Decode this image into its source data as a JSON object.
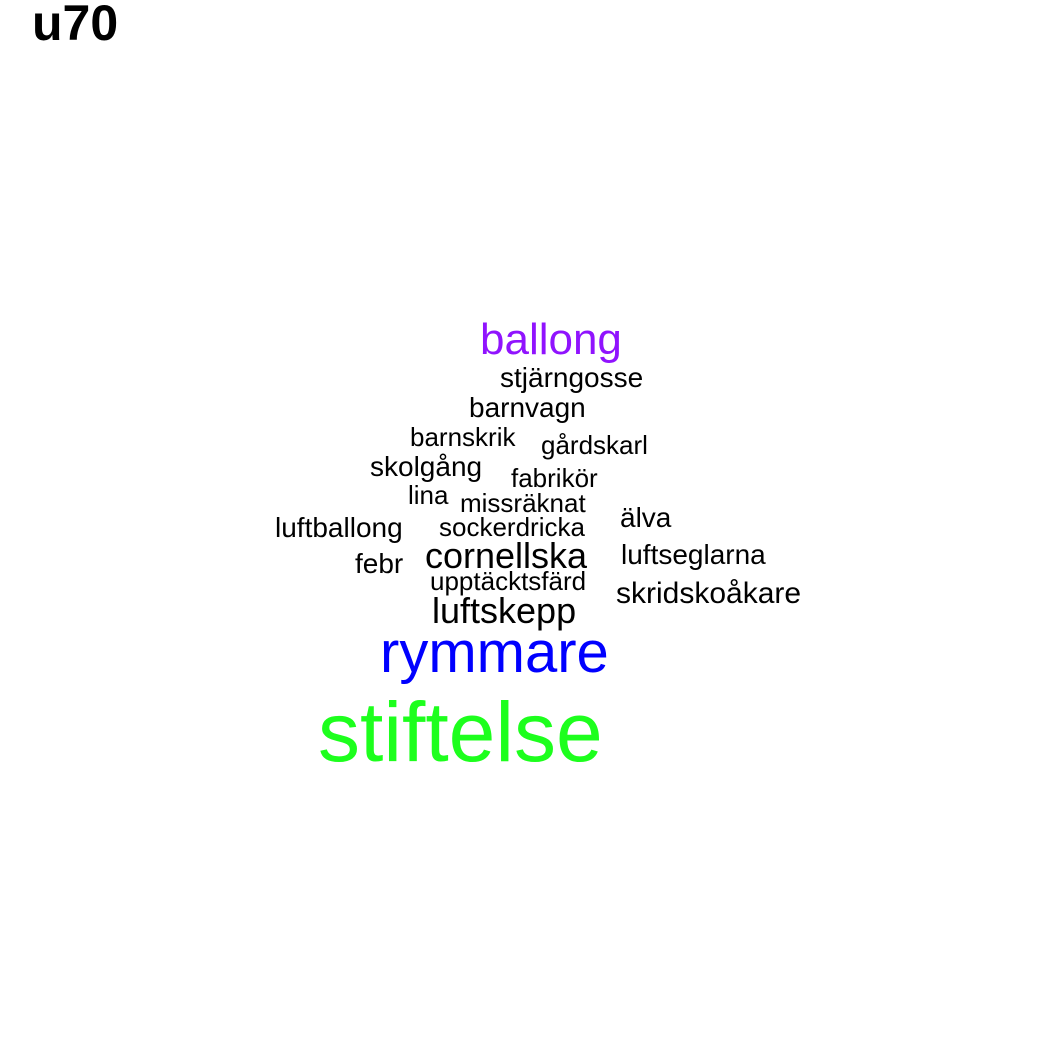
{
  "title": "u70",
  "colors": {
    "default_word": "#000000",
    "ballong": "#9013FE",
    "rymmare": "#0000FF",
    "stiftelse": "#1DFF1D",
    "background": "#FFFFFF"
  },
  "words": {
    "ballong": "ballong",
    "stjarngosse": "stjärngosse",
    "barnvagn": "barnvagn",
    "barnskrik": "barnskrik",
    "gardskarl": "gårdskarl",
    "skolgang": "skolgång",
    "fabrikor": "fabrikör",
    "lina": "lina",
    "missraknat": "missräknat",
    "luftballong": "luftballong",
    "sockerdricka": "sockerdricka",
    "alva": "älva",
    "cornellska": "cornellska",
    "luftseglarna": "luftseglarna",
    "febr": "febr",
    "upptacktsfard": "upptäcktsfärd",
    "skridskoakare": "skridskoåkare",
    "luftskepp": "luftskepp",
    "rymmare": "rymmare",
    "stiftelse": "stiftelse"
  }
}
